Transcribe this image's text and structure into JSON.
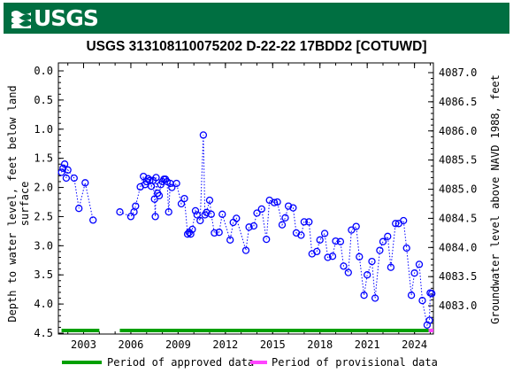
{
  "header": {
    "logo_text": "USGS"
  },
  "chart_data": {
    "type": "scatter",
    "title": "USGS 313108110075202 D-22-22 17BDD2 [COTUWD]",
    "ylabel_left": "Depth to water level, feet below land surface",
    "ylabel_right": "Groundwater level above NAVD 1988, feet",
    "xlim": [
      2001.4,
      2025.2
    ],
    "ylim_left": [
      4.5,
      0.0
    ],
    "ylim_right": [
      4082.53,
      4087.03
    ],
    "x_ticks": [
      2003,
      2006,
      2009,
      2012,
      2015,
      2018,
      2021,
      2024
    ],
    "x_tick_labels": [
      "2003",
      "2006",
      "2009",
      "2012",
      "2015",
      "2018",
      "2021",
      "2024"
    ],
    "y_ticks_left": [
      0.0,
      0.5,
      1.0,
      1.5,
      2.0,
      2.5,
      3.0,
      3.5,
      4.0,
      4.5
    ],
    "y_tick_labels_left": [
      "0.0",
      "0.5",
      "1.0",
      "1.5",
      "2.0",
      "2.5",
      "3.0",
      "3.5",
      "4.0",
      "4.5"
    ],
    "y_ticks_right": [
      4083.0,
      4083.5,
      4084.0,
      4084.5,
      4085.0,
      4085.5,
      4086.0,
      4086.5,
      4087.0
    ],
    "y_tick_labels_right": [
      "4083.0",
      "4083.5",
      "4084.0",
      "4084.5",
      "4085.0",
      "4085.5",
      "4086.0",
      "4086.5",
      "4087.0"
    ],
    "grid": false,
    "series": [
      {
        "name": "Depth to water level",
        "color": "#0000ff",
        "marker": "open-circle",
        "line": "dotted",
        "segments": [
          {
            "x": [
              2001.6,
              2001.7,
              2001.8,
              2001.9,
              2002.0,
              2002.4,
              2002.7,
              2003.1,
              2003.6
            ],
            "y": [
              1.74,
              1.67,
              1.6,
              1.84,
              1.7,
              1.84,
              2.36,
              1.92,
              2.56
            ]
          },
          {
            "x": [
              2005.3,
              2006.0,
              2006.2,
              2006.3,
              2006.6,
              2006.8,
              2006.9,
              2007.0,
              2007.1,
              2007.2,
              2007.3,
              2007.4,
              2007.5,
              2007.55,
              2007.6,
              2007.7,
              2007.8,
              2007.9,
              2008.0,
              2008.1,
              2008.2,
              2008.3,
              2008.4,
              2008.5,
              2008.6,
              2008.9,
              2009.2,
              2009.4,
              2009.6,
              2009.7,
              2009.8,
              2009.9,
              2010.1,
              2010.2,
              2010.4,
              2010.6,
              2010.7,
              2010.8,
              2011.0,
              2011.1,
              2011.3,
              2011.6,
              2011.8,
              2012.3,
              2012.5,
              2012.7,
              2013.3,
              2013.5,
              2013.8,
              2014.0,
              2014.3,
              2014.6,
              2014.8,
              2015.1,
              2015.3,
              2015.6,
              2015.8,
              2016.0,
              2016.3,
              2016.5,
              2016.8,
              2017.0,
              2017.3,
              2017.5,
              2017.8,
              2018.0,
              2018.3,
              2018.5,
              2018.8,
              2019.0,
              2019.3,
              2019.5,
              2019.8,
              2020.0,
              2020.3,
              2020.5,
              2020.8,
              2021.0,
              2021.3,
              2021.5,
              2021.8,
              2022.0,
              2022.3,
              2022.5,
              2022.8,
              2023.0,
              2023.3,
              2023.5,
              2023.8,
              2024.0,
              2024.3,
              2024.5,
              2024.8,
              2024.95,
              2025.0,
              2025.1
            ],
            "y": [
              2.42,
              2.5,
              2.42,
              2.32,
              1.99,
              1.81,
              1.95,
              1.9,
              1.85,
              1.88,
              1.98,
              1.88,
              2.2,
              2.5,
              1.83,
              2.1,
              2.14,
              1.95,
              1.9,
              1.86,
              1.86,
              1.9,
              2.42,
              1.93,
              2.0,
              1.93,
              2.28,
              2.19,
              2.8,
              2.77,
              2.8,
              2.72,
              2.4,
              2.47,
              2.57,
              1.1,
              2.47,
              2.43,
              2.22,
              2.46,
              2.78,
              2.77,
              2.46,
              2.9,
              2.6,
              2.53,
              3.08,
              2.68,
              2.66,
              2.44,
              2.37,
              2.89,
              2.22,
              2.26,
              2.25,
              2.64,
              2.52,
              2.32,
              2.35,
              2.78,
              2.82,
              2.59,
              2.59,
              3.14,
              3.1,
              2.9,
              2.79,
              3.2,
              3.18,
              2.92,
              2.93,
              3.35,
              3.46,
              2.73,
              2.67,
              3.19,
              3.85,
              3.5,
              3.27,
              3.9,
              3.08,
              2.93,
              2.84,
              3.37,
              2.62,
              2.62,
              2.57,
              3.04,
              3.85,
              3.47,
              3.32,
              3.94,
              4.36,
              4.28,
              3.81,
              3.82
            ]
          }
        ]
      }
    ],
    "approval_bars": [
      {
        "status": "approved",
        "color": "#00a000",
        "ranges": [
          [
            2001.6,
            2004.0
          ],
          [
            2005.3,
            2024.9
          ]
        ]
      },
      {
        "status": "provisional",
        "color": "#ff44ff",
        "ranges": [
          [
            2024.9,
            2025.2
          ]
        ]
      }
    ],
    "legend": {
      "position": "bottom",
      "entries": [
        {
          "label": "Period of approved data",
          "color": "#00a000"
        },
        {
          "label": "Period of provisional data",
          "color": "#ff44ff"
        }
      ]
    }
  }
}
